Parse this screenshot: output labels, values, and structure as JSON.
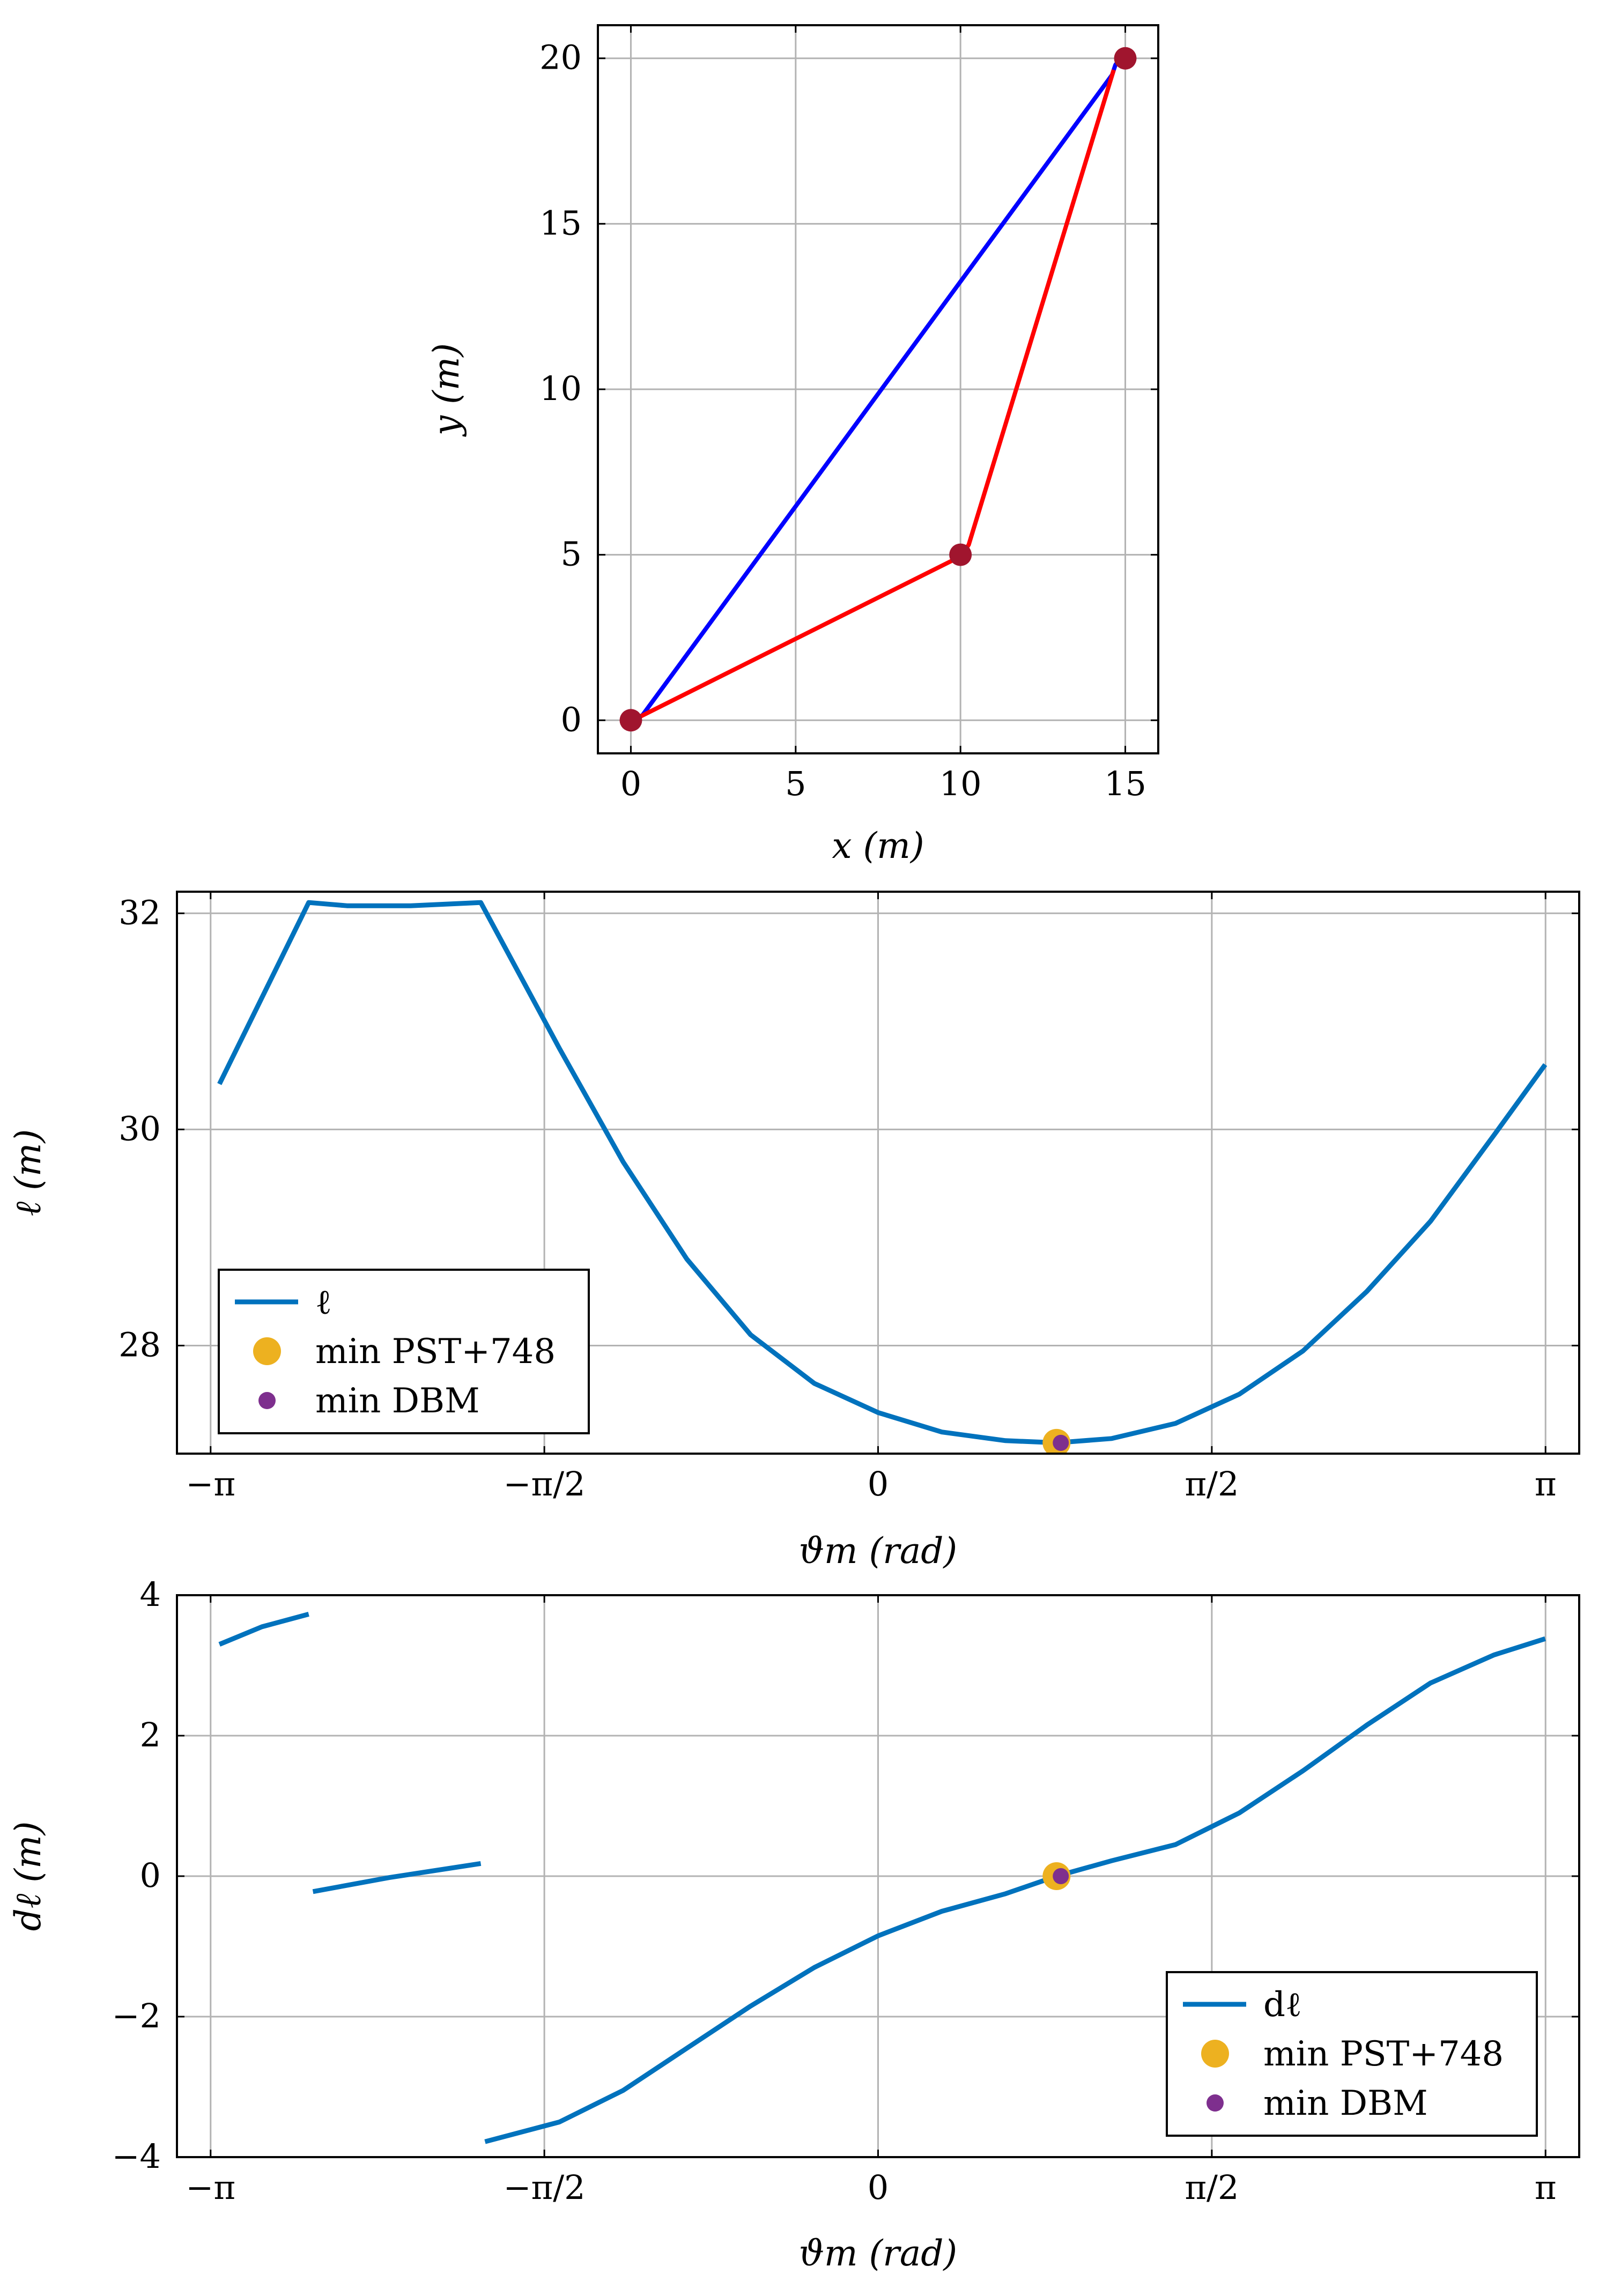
{
  "chart_data": [
    {
      "type": "line",
      "title": "",
      "xlabel": "x (m)",
      "ylabel": "y (m)",
      "xlim": [
        -1,
        16
      ],
      "ylim": [
        -1,
        21
      ],
      "grid": true,
      "xticks": [
        0,
        5,
        10,
        15
      ],
      "xtick_labels": [
        "0",
        "5",
        "10",
        "15"
      ],
      "yticks": [
        0,
        5,
        10,
        15,
        20
      ],
      "ytick_labels": [
        "0",
        "5",
        "10",
        "15",
        "20"
      ],
      "series": [
        {
          "name": "blue path",
          "color": "#0000ff",
          "x": [
            0,
            0.35,
            14.6,
            14.7,
            14.85,
            15.0
          ],
          "y": [
            0,
            0.15,
            19.5,
            19.8,
            20.0,
            20.0
          ]
        },
        {
          "name": "red path",
          "color": "#ff0000",
          "x": [
            0.3,
            10.0,
            10.25,
            14.65
          ],
          "y": [
            0.12,
            4.95,
            5.3,
            19.65
          ]
        },
        {
          "name": "waypoints",
          "kind": "scatter",
          "color": "#a0152e",
          "x": [
            0,
            10,
            15
          ],
          "y": [
            0,
            5,
            20
          ]
        }
      ]
    },
    {
      "type": "line",
      "title": "",
      "xlabel": "ϑm (rad)",
      "ylabel": "ℓ (m)",
      "xlim": [
        -3.3,
        3.3
      ],
      "ylim": [
        27.0,
        32.2
      ],
      "grid": true,
      "xticks": [
        -3.1416,
        -1.5708,
        0,
        1.5708,
        3.1416
      ],
      "xtick_labels": [
        "−π",
        "−π/2",
        "0",
        "π/2",
        "π"
      ],
      "yticks": [
        28,
        30,
        32
      ],
      "ytick_labels": [
        "28",
        "30",
        "32"
      ],
      "legend": {
        "position": "bottom-left",
        "entries": [
          "ℓ",
          "min PST+748",
          "min DBM"
        ]
      },
      "series": [
        {
          "name": "ℓ",
          "color": "#0072bd",
          "x": [
            -3.1,
            -2.68,
            -2.5,
            -2.2,
            -1.87,
            -1.5,
            -1.2,
            -0.9,
            -0.6,
            -0.3,
            0,
            0.3,
            0.6,
            0.84,
            1.1,
            1.4,
            1.7,
            2.0,
            2.3,
            2.6,
            2.9,
            3.14
          ],
          "y": [
            30.42,
            32.1,
            32.07,
            32.07,
            32.1,
            30.75,
            29.7,
            28.8,
            28.1,
            27.65,
            27.38,
            27.2,
            27.12,
            27.1,
            27.14,
            27.28,
            27.55,
            27.95,
            28.5,
            29.15,
            29.95,
            30.6
          ]
        },
        {
          "name": "min PST+748",
          "kind": "marker",
          "color": "#edb120",
          "x": [
            0.84
          ],
          "y": [
            27.1
          ]
        },
        {
          "name": "min DBM",
          "kind": "marker",
          "color": "#7e2f8e",
          "x": [
            0.86
          ],
          "y": [
            27.1
          ]
        }
      ]
    },
    {
      "type": "line",
      "title": "",
      "xlabel": "ϑm (rad)",
      "ylabel": "dℓ (m)",
      "xlim": [
        -3.3,
        3.3
      ],
      "ylim": [
        -4,
        4
      ],
      "grid": true,
      "xticks": [
        -3.1416,
        -1.5708,
        0,
        1.5708,
        3.1416
      ],
      "xtick_labels": [
        "−π",
        "−π/2",
        "0",
        "π/2",
        "π"
      ],
      "yticks": [
        -4,
        -2,
        0,
        2,
        4
      ],
      "ytick_labels": [
        "−4",
        "−2",
        "0",
        "2",
        "4"
      ],
      "legend": {
        "position": "bottom-right",
        "entries": [
          "dℓ",
          "min PST+748",
          "min DBM"
        ]
      },
      "series": [
        {
          "name": "dℓ",
          "color": "#0072bd",
          "segments": [
            {
              "x": [
                -3.1,
                -2.9,
                -2.68
              ],
              "y": [
                3.3,
                3.55,
                3.73
              ]
            },
            {
              "x": [
                -2.66,
                -2.3,
                -1.87
              ],
              "y": [
                -0.22,
                -0.02,
                0.18
              ]
            },
            {
              "x": [
                -1.85,
                -1.5,
                -1.2,
                -0.9,
                -0.6,
                -0.3,
                0,
                0.3,
                0.6,
                0.84,
                1.1,
                1.4,
                1.7,
                2.0,
                2.3,
                2.6,
                2.9,
                3.14
              ],
              "y": [
                -3.78,
                -3.5,
                -3.05,
                -2.45,
                -1.85,
                -1.3,
                -0.85,
                -0.5,
                -0.25,
                0,
                0.22,
                0.45,
                0.9,
                1.5,
                2.15,
                2.75,
                3.15,
                3.38
              ]
            }
          ]
        },
        {
          "name": "min PST+748",
          "kind": "marker",
          "color": "#edb120",
          "x": [
            0.84
          ],
          "y": [
            0
          ]
        },
        {
          "name": "min DBM",
          "kind": "marker",
          "color": "#7e2f8e",
          "x": [
            0.86
          ],
          "y": [
            0
          ]
        }
      ]
    }
  ]
}
